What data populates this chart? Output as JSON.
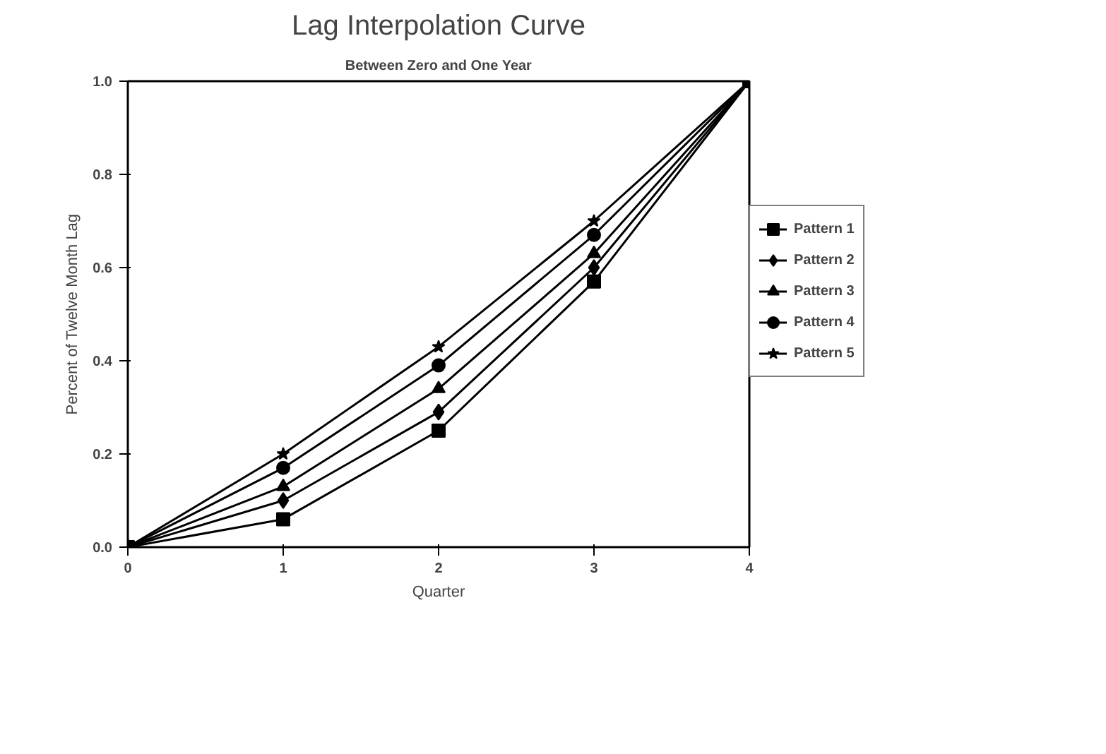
{
  "chart_data": {
    "type": "line",
    "title": "Lag Interpolation Curve",
    "subtitle": "Between Zero and One Year",
    "xlabel": "Quarter",
    "ylabel": "Percent of Twelve Month Lag",
    "x": [
      0,
      1,
      2,
      3,
      4
    ],
    "series": [
      {
        "name": "Pattern 1",
        "color": "#000000",
        "marker": "square",
        "values": [
          0,
          0.06,
          0.25,
          0.57,
          1
        ]
      },
      {
        "name": "Pattern 2",
        "color": "#000000",
        "marker": "diamond",
        "values": [
          0,
          0.1,
          0.29,
          0.6,
          1
        ]
      },
      {
        "name": "Pattern 3",
        "color": "#000000",
        "marker": "triangle",
        "values": [
          0,
          0.13,
          0.34,
          0.63,
          1
        ]
      },
      {
        "name": "Pattern 4",
        "color": "#000000",
        "marker": "circle",
        "values": [
          0,
          0.17,
          0.39,
          0.67,
          1
        ]
      },
      {
        "name": "Pattern 5",
        "color": "#000000",
        "marker": "star",
        "values": [
          0,
          0.2,
          0.43,
          0.7,
          1
        ]
      }
    ],
    "xlim": [
      0,
      4
    ],
    "ylim": [
      0,
      1
    ],
    "xticks": [
      0,
      1,
      2,
      3,
      4
    ],
    "yticks": [
      {
        "value": 0,
        "label": "0.0"
      },
      {
        "value": 0.2,
        "label": "0.2"
      },
      {
        "value": 0.4,
        "label": "0.4"
      },
      {
        "value": 0.6,
        "label": "0.6"
      },
      {
        "value": 0.8,
        "label": "0.8"
      },
      {
        "value": 1,
        "label": "1.0"
      }
    ],
    "grid": false,
    "legend": "right",
    "line_style": "solid"
  }
}
